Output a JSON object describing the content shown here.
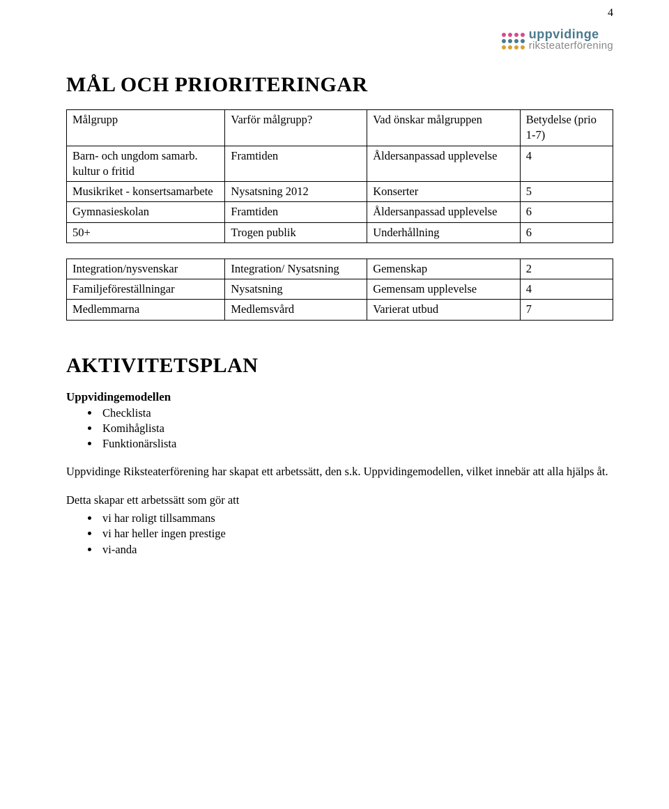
{
  "page_number": "4",
  "logo": {
    "line1": "uppvidinge",
    "line2": "riksteaterförening",
    "dot_colors": [
      "#d94a8c",
      "#d94a8c",
      "#d94a8c",
      "#d94a8c",
      "#4a7a8c",
      "#4a7a8c",
      "#4a7a8c",
      "#4a7a8c",
      "#d8a030",
      "#d8a030",
      "#d8a030",
      "#d8a030"
    ]
  },
  "section1_title": "MÅL OCH PRIORITERINGAR",
  "table1": {
    "headers": [
      "Målgrupp",
      "Varför målgrupp?",
      "Vad önskar målgruppen",
      "Betydelse (prio 1-7)"
    ],
    "rows": [
      [
        "Barn- och ungdom samarb. kultur o fritid",
        "Framtiden",
        "Åldersanpassad upplevelse",
        "4"
      ],
      [
        "Musikriket - konsertsamarbete",
        "Nysatsning 2012",
        "Konserter",
        "5"
      ],
      [
        "Gymnasieskolan",
        "Framtiden",
        "Åldersanpassad upplevelse",
        "6"
      ],
      [
        "50+",
        "Trogen publik",
        "Underhållning",
        "6"
      ]
    ]
  },
  "table2": {
    "rows": [
      [
        "Integration/nysvenskar",
        "Integration/ Nysatsning",
        "Gemenskap",
        "2"
      ],
      [
        "Familjeföreställningar",
        "Nysatsning",
        "Gemensam upplevelse",
        "4"
      ],
      [
        "Medlemmarna",
        "Medlemsvård",
        "Varierat utbud",
        "7"
      ]
    ]
  },
  "section2_title": "AKTIVITETSPLAN",
  "subhead": "Uppvidingemodellen",
  "bullets1": [
    "Checklista",
    "Komihåglista",
    "Funktionärslista"
  ],
  "para1": "Uppvidinge Riksteaterförening har skapat ett arbetssätt, den s.k. Uppvidingemodellen, vilket innebär att alla hjälps åt.",
  "para2": "Detta skapar ett arbetssätt som gör att",
  "bullets2": [
    "vi har roligt tillsammans",
    "vi har heller ingen prestige",
    "vi-anda"
  ]
}
